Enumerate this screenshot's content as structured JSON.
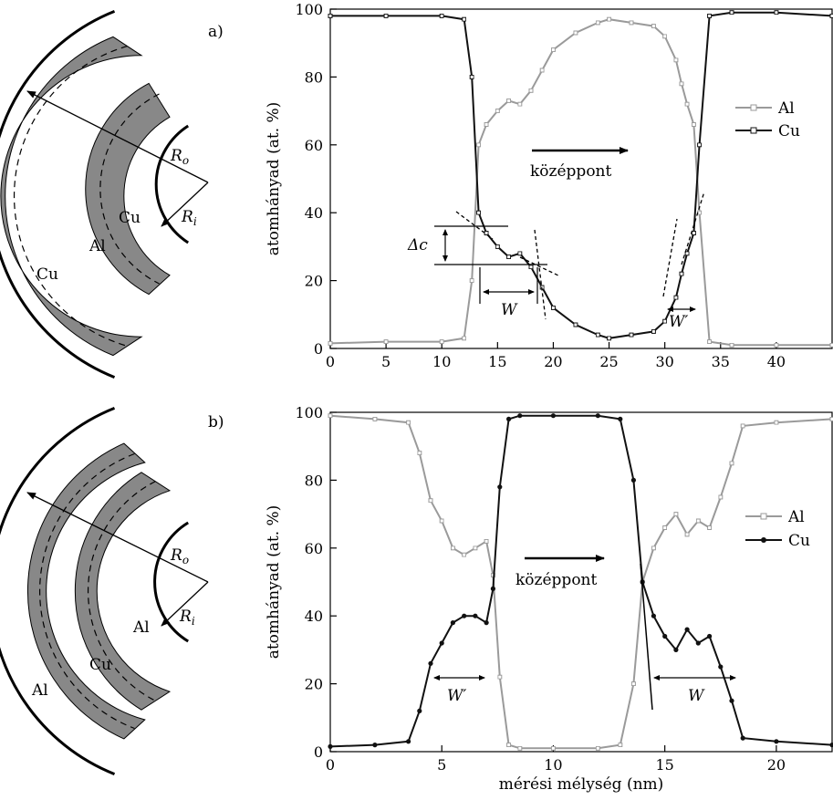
{
  "colors": {
    "al": "#9a9a9a",
    "cu": "#111111",
    "shell": "#888888"
  },
  "x_axis_label": "mérési mélység (nm)",
  "chart_data": [
    {
      "type": "line",
      "panel_label": "a)",
      "xlabel": "",
      "ylabel": "atomhányad (at. %)",
      "xlim": [
        0,
        45
      ],
      "ylim": [
        0,
        100
      ],
      "xticks": [
        0,
        5,
        10,
        15,
        20,
        25,
        30,
        35,
        40
      ],
      "yticks": [
        0,
        20,
        40,
        60,
        80,
        100
      ],
      "legend": {
        "position": "right",
        "entries": [
          "Al",
          "Cu"
        ]
      },
      "annotations": {
        "arrow_text": "középpont",
        "delta": "Δc",
        "w": "W",
        "w_prime": "W′"
      },
      "series": [
        {
          "name": "Al",
          "color": "#9a9a9a",
          "x": [
            0,
            5,
            10,
            12,
            12.7,
            13.3,
            14,
            15,
            16,
            17,
            18,
            19,
            20,
            22,
            24,
            25,
            27,
            29,
            30,
            31,
            31.5,
            32,
            32.6,
            33.1,
            34,
            36,
            40,
            45
          ],
          "y": [
            1.5,
            2,
            2,
            3,
            20,
            60,
            66,
            70,
            73,
            72,
            76,
            82,
            88,
            93,
            96,
            97,
            96,
            95,
            92,
            85,
            78,
            72,
            66,
            40,
            2,
            1,
            1,
            1
          ]
        },
        {
          "name": "Cu",
          "color": "#111111",
          "x": [
            0,
            5,
            10,
            12,
            12.7,
            13.3,
            14,
            15,
            16,
            17,
            18,
            19,
            20,
            22,
            24,
            25,
            27,
            29,
            30,
            31,
            31.5,
            32,
            32.6,
            33.1,
            34,
            36,
            40,
            45
          ],
          "y": [
            98,
            98,
            98,
            97,
            80,
            40,
            34,
            30,
            27,
            28,
            24,
            18,
            12,
            7,
            4,
            3,
            4,
            5,
            8,
            15,
            22,
            28,
            34,
            60,
            98,
            99,
            99,
            98
          ]
        }
      ]
    },
    {
      "type": "line",
      "panel_label": "b)",
      "xlabel": "mérési mélység (nm)",
      "ylabel": "atomhányad (at. %)",
      "xlim": [
        0,
        22.5
      ],
      "ylim": [
        0,
        100
      ],
      "xticks": [
        0,
        5,
        10,
        15,
        20
      ],
      "yticks": [
        0,
        20,
        40,
        60,
        80,
        100
      ],
      "legend": {
        "position": "right",
        "entries": [
          "Al",
          "Cu"
        ]
      },
      "annotations": {
        "arrow_text": "középpont",
        "w": "W",
        "w_prime": "W′"
      },
      "series": [
        {
          "name": "Al",
          "color": "#9a9a9a",
          "x": [
            0,
            2,
            3.5,
            4,
            4.5,
            5,
            5.5,
            6,
            6.5,
            7,
            7.3,
            7.6,
            8,
            8.5,
            10,
            12,
            13,
            13.6,
            14,
            14.5,
            15,
            15.5,
            16,
            16.5,
            17,
            17.5,
            18,
            18.5,
            20,
            22.5
          ],
          "y": [
            99,
            98,
            97,
            88,
            74,
            68,
            60,
            58,
            60,
            62,
            52,
            22,
            2,
            1,
            1,
            1,
            2,
            20,
            50,
            60,
            66,
            70,
            64,
            68,
            66,
            75,
            85,
            96,
            97,
            98
          ]
        },
        {
          "name": "Cu",
          "color": "#111111",
          "x": [
            0,
            2,
            3.5,
            4,
            4.5,
            5,
            5.5,
            6,
            6.5,
            7,
            7.3,
            7.6,
            8,
            8.5,
            10,
            12,
            13,
            13.6,
            14,
            14.5,
            15,
            15.5,
            16,
            16.5,
            17,
            17.5,
            18,
            18.5,
            20,
            22.5
          ],
          "y": [
            1.5,
            2,
            3,
            12,
            26,
            32,
            38,
            40,
            40,
            38,
            48,
            78,
            98,
            99,
            99,
            99,
            98,
            80,
            50,
            40,
            34,
            30,
            36,
            32,
            34,
            25,
            15,
            4,
            3,
            2
          ]
        }
      ]
    }
  ],
  "schematics": [
    {
      "panel": "a",
      "labels": [
        "Cu",
        "Al",
        "Cu"
      ],
      "r_outer": "R",
      "r_outer_sub": "o",
      "r_inner": "R",
      "r_inner_sub": "i"
    },
    {
      "panel": "b",
      "labels": [
        "Al",
        "Cu",
        "Al"
      ],
      "r_outer": "R",
      "r_outer_sub": "o",
      "r_inner": "R",
      "r_inner_sub": "i"
    }
  ]
}
